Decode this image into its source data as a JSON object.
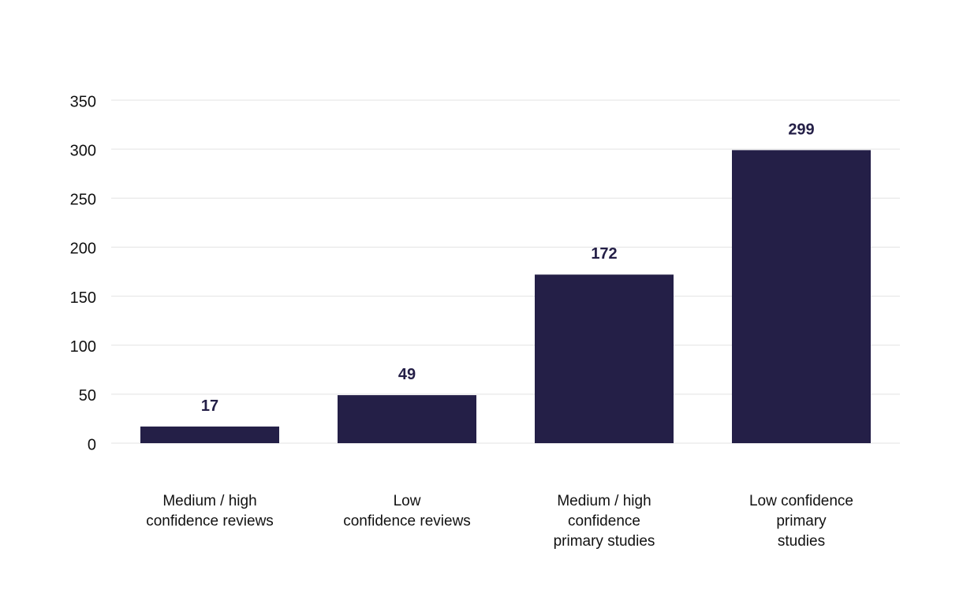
{
  "chart_data": {
    "type": "bar",
    "title": "",
    "xlabel": "",
    "ylabel": "",
    "categories": [
      [
        "Medium / high",
        "confidence reviews"
      ],
      [
        "Low",
        "confidence reviews"
      ],
      [
        "Medium / high",
        "confidence",
        "primary studies"
      ],
      [
        "Low confidence",
        "primary",
        "studies"
      ]
    ],
    "values": [
      17,
      49,
      172,
      299
    ],
    "data_labels": [
      "17",
      "49",
      "172",
      "299"
    ],
    "ylim": [
      0,
      350
    ],
    "yticks": [
      0,
      50,
      100,
      150,
      200,
      250,
      300,
      350
    ],
    "grid": true,
    "legend": "none",
    "bar_color": "#241f47",
    "label_color": "#241f47"
  }
}
